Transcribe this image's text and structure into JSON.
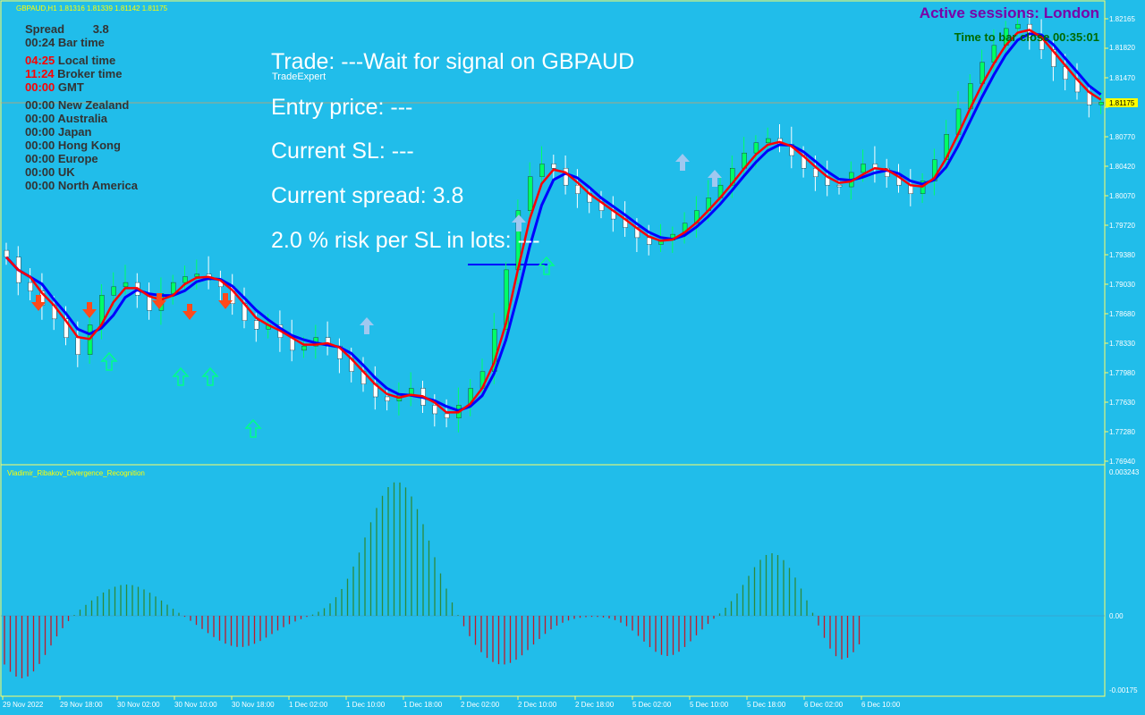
{
  "header": {
    "symbol_line": "GBPAUD,H1  1.81316 1.81339 1.81142 1.81175",
    "indicator_label": "TradeExpert"
  },
  "info_panel": {
    "spread": {
      "label": "Spread",
      "value": "3.8"
    },
    "bar_time": {
      "time": "00:24",
      "label": "Bar time"
    },
    "local_time": {
      "time": "04:25",
      "label": "Local time"
    },
    "broker_time": {
      "time": "11:24",
      "label": "Broker time"
    },
    "gmt": {
      "time": "00:00",
      "label": "GMT"
    },
    "sessions": [
      {
        "time": "00:00",
        "label": "New Zealand"
      },
      {
        "time": "00:00",
        "label": "Australia"
      },
      {
        "time": "00:00",
        "label": "Japan"
      },
      {
        "time": "00:00",
        "label": "Hong Kong"
      },
      {
        "time": "00:00",
        "label": "Europe"
      },
      {
        "time": "00:00",
        "label": "UK"
      },
      {
        "time": "00:00",
        "label": "North America"
      }
    ]
  },
  "trade_panel": {
    "trade": "Trade: ---Wait for signal on  GBPAUD",
    "entry": "Entry price: ---",
    "sl": "Current SL: ---",
    "spread": "Current spread: 3.8",
    "risk": "2.0 % risk per SL in lots: ---"
  },
  "top_right": {
    "active_sessions": "Active sessions:  London",
    "bar_close": "Time to bar close 00:35:01"
  },
  "price_axis": {
    "labels": [
      "1.82165",
      "1.81820",
      "1.81470",
      "1.81175",
      "1.80770",
      "1.80420",
      "1.80070",
      "1.79720",
      "1.79380",
      "1.79030",
      "1.78680",
      "1.78330",
      "1.77980",
      "1.77630",
      "1.77280",
      "1.76940"
    ],
    "current": "1.81175"
  },
  "indicator_panel": {
    "name": "Vladimir_Ribakov_Divergence_Recognition",
    "labels": [
      "0.003243",
      "0.00",
      "-0.00175"
    ]
  },
  "time_axis": {
    "labels": [
      "29 Nov 2022",
      "29 Nov 18:00",
      "30 Nov 02:00",
      "30 Nov 10:00",
      "30 Nov 18:00",
      "1 Dec 02:00",
      "1 Dec 10:00",
      "1 Dec 18:00",
      "2 Dec 02:00",
      "2 Dec 10:00",
      "2 Dec 18:00",
      "5 Dec 02:00",
      "5 Dec 10:00",
      "5 Dec 18:00",
      "6 Dec 02:00",
      "6 Dec 10:00"
    ]
  },
  "colors": {
    "background": "#21bdea",
    "bull": "#00ff66",
    "bear": "#ffffff",
    "ma_fast": "#ff0000",
    "ma_slow": "#0000ff",
    "text_red": "#ff0000",
    "text_dark": "#333333",
    "histo_pos": "#2d8a3c",
    "histo_neg": "#c01a2a"
  },
  "chart_data": {
    "type": "candlestick",
    "symbol": "GBPAUD",
    "timeframe": "H1",
    "close": [
      1.7935,
      1.7905,
      1.7895,
      1.7878,
      1.7862,
      1.784,
      1.782,
      1.7855,
      1.789,
      1.79,
      1.7905,
      1.789,
      1.7872,
      1.7892,
      1.7905,
      1.7912,
      1.7915,
      1.7908,
      1.79,
      1.788,
      1.786,
      1.785,
      1.7855,
      1.784,
      1.7825,
      1.783,
      1.784,
      1.783,
      1.7815,
      1.78,
      1.7785,
      1.777,
      1.7765,
      1.7772,
      1.778,
      1.776,
      1.775,
      1.7745,
      1.776,
      1.778,
      1.78,
      1.785,
      1.792,
      1.799,
      1.803,
      1.8045,
      1.804,
      1.802,
      1.801,
      1.8,
      1.799,
      1.798,
      1.797,
      1.7958,
      1.795,
      1.7955,
      1.7962,
      1.7975,
      1.799,
      1.8005,
      1.802,
      1.804,
      1.8058,
      1.807,
      1.8075,
      1.8068,
      1.8055,
      1.804,
      1.803,
      1.802,
      1.8018,
      1.8035,
      1.8045,
      1.804,
      1.803,
      1.802,
      1.801,
      1.8025,
      1.805,
      1.808,
      1.811,
      1.814,
      1.8165,
      1.8185,
      1.8205,
      1.821,
      1.8195,
      1.818,
      1.816,
      1.8145,
      1.813,
      1.8115,
      1.8118
    ]
  }
}
